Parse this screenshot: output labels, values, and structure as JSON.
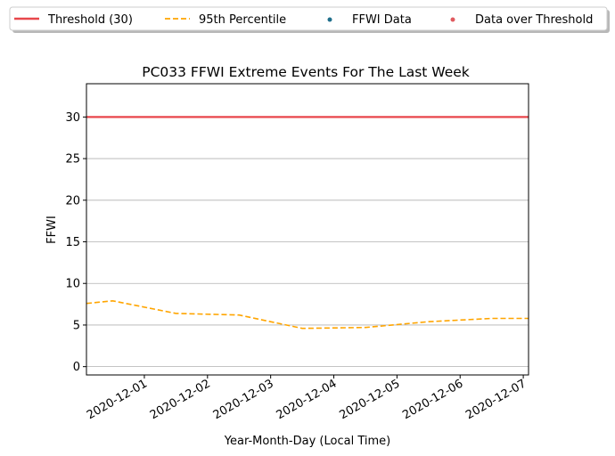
{
  "chart_data": {
    "type": "line",
    "title": "PC033 FFWI Extreme Events For The Last Week",
    "xlabel": "Year-Month-Day (Local Time)",
    "ylabel": "FFWI",
    "xlim": [
      "2020-11-30T02:00",
      "2020-12-07T02:00"
    ],
    "ylim": [
      -1,
      34
    ],
    "yticks": [
      0,
      5,
      10,
      15,
      20,
      25,
      30
    ],
    "xticks": [
      "2020-12-01",
      "2020-12-02",
      "2020-12-03",
      "2020-12-04",
      "2020-12-05",
      "2020-12-06",
      "2020-12-07"
    ],
    "grid": "horizontal",
    "legend_position": "top, outside plot",
    "legend": [
      {
        "label": "Threshold (30)",
        "style": "solid-line",
        "color": "#e8474b"
      },
      {
        "label": "95th Percentile",
        "style": "dashed-line",
        "color": "#ffa500"
      },
      {
        "label": "FFWI Data",
        "style": "point",
        "color": "#1f6f8b"
      },
      {
        "label": "Data over Threshold",
        "style": "point",
        "color": "#e05a5f"
      }
    ],
    "series": [
      {
        "name": "Threshold (30)",
        "color": "#e8474b",
        "style": "solid",
        "x": [
          "2020-11-30T02:00",
          "2020-12-07T02:00"
        ],
        "y": [
          30,
          30
        ]
      },
      {
        "name": "95th Percentile",
        "color": "#ffa500",
        "style": "dashed",
        "x": [
          "2020-11-30T02:00",
          "2020-11-30T12:00",
          "2020-12-01T12:00",
          "2020-12-02T12:00",
          "2020-12-03T12:00",
          "2020-12-04T12:00",
          "2020-12-05T12:00",
          "2020-12-06T12:00",
          "2020-12-07T02:00"
        ],
        "y": [
          7.6,
          7.9,
          6.4,
          6.2,
          4.6,
          4.7,
          5.4,
          5.8,
          5.8
        ]
      },
      {
        "name": "FFWI Data",
        "color": "#1f6f8b",
        "x": [],
        "y": []
      },
      {
        "name": "Data over Threshold",
        "color": "#e05a5f",
        "x": [],
        "y": []
      }
    ]
  }
}
